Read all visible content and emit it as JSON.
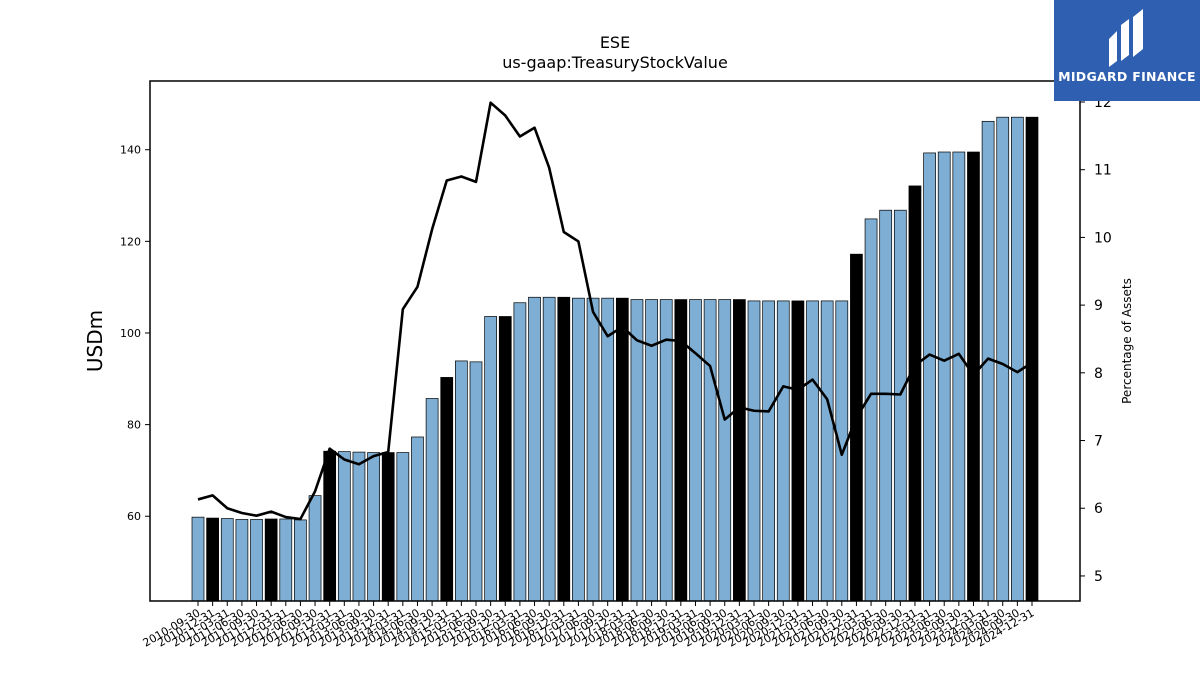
{
  "chart_data": {
    "type": "bar",
    "title": "ESE",
    "subtitle": "us-gaap:TreasuryStockValue",
    "ylabel": "USDm",
    "y2label": "Percentage of Assets",
    "ylim": [
      41.5,
      155
    ],
    "y2lim": [
      4.63,
      12.31
    ],
    "yticks": [
      60,
      80,
      100,
      120,
      140
    ],
    "y2ticks": [
      5,
      6,
      7,
      8,
      9,
      10,
      11,
      12
    ],
    "categories": [
      "2010-09-30",
      "2010-12-31",
      "2011-03-31",
      "2011-06-30",
      "2011-09-30",
      "2011-12-31",
      "2012-03-31",
      "2012-06-30",
      "2012-09-30",
      "2012-12-31",
      "2013-03-31",
      "2013-06-30",
      "2013-09-30",
      "2013-12-31",
      "2014-03-31",
      "2014-06-30",
      "2014-09-30",
      "2014-12-31",
      "2015-03-31",
      "2015-06-30",
      "2015-09-30",
      "2015-12-31",
      "2016-03-31",
      "2016-06-30",
      "2016-09-30",
      "2016-12-31",
      "2017-03-31",
      "2017-06-30",
      "2017-09-30",
      "2017-12-31",
      "2018-03-31",
      "2018-06-30",
      "2018-09-30",
      "2018-12-31",
      "2019-03-31",
      "2019-06-30",
      "2019-09-30",
      "2019-12-31",
      "2020-03-31",
      "2020-06-30",
      "2020-09-30",
      "2020-12-31",
      "2021-03-31",
      "2021-06-30",
      "2021-09-30",
      "2021-12-31",
      "2022-03-31",
      "2022-06-30",
      "2022-09-30",
      "2022-12-31",
      "2023-03-31",
      "2023-06-30",
      "2023-09-30",
      "2023-12-31",
      "2024-03-31",
      "2024-06-30",
      "2024-09-30",
      "2024-12-31"
    ],
    "highlight": [
      false,
      true,
      false,
      false,
      false,
      true,
      false,
      false,
      false,
      true,
      false,
      false,
      false,
      true,
      false,
      false,
      false,
      true,
      false,
      false,
      false,
      true,
      false,
      false,
      false,
      true,
      false,
      false,
      false,
      true,
      false,
      false,
      false,
      true,
      false,
      false,
      false,
      true,
      false,
      false,
      false,
      true,
      false,
      false,
      false,
      true,
      false,
      false,
      false,
      true,
      false,
      false,
      false,
      true,
      false,
      false,
      false,
      true
    ],
    "colors": {
      "bar": "#7eaed3",
      "highlight": "#000000",
      "line": "#000000"
    },
    "series": [
      {
        "axis": "left",
        "values": [
          59.8,
          59.6,
          59.5,
          59.3,
          59.3,
          59.4,
          59.4,
          59.2,
          64.5,
          74.2,
          74.1,
          74.0,
          73.9,
          73.9,
          73.9,
          77.3,
          85.7,
          90.3,
          93.9,
          93.7,
          103.6,
          103.6,
          106.6,
          107.8,
          107.8,
          107.8,
          107.6,
          107.6,
          107.6,
          107.6,
          107.3,
          107.3,
          107.3,
          107.3,
          107.3,
          107.3,
          107.3,
          107.3,
          107.0,
          107.0,
          107.0,
          107.0,
          107.0,
          107.0,
          107.0,
          117.2,
          124.9,
          126.8,
          126.8,
          132.1,
          139.3,
          139.5,
          139.5,
          139.5,
          146.2,
          147.1,
          147.1,
          147.1
        ]
      },
      {
        "axis": "right",
        "type": "line",
        "values": [
          6.13,
          6.19,
          6.0,
          5.93,
          5.89,
          5.95,
          5.87,
          5.84,
          6.25,
          6.88,
          6.72,
          6.65,
          6.77,
          6.83,
          8.94,
          9.27,
          10.12,
          10.84,
          10.9,
          10.82,
          11.99,
          11.8,
          11.49,
          11.62,
          11.03,
          10.08,
          9.94,
          8.9,
          8.54,
          8.68,
          8.48,
          8.4,
          8.49,
          8.47,
          8.29,
          8.1,
          7.31,
          7.49,
          7.44,
          7.43,
          7.8,
          7.75,
          7.9,
          7.61,
          6.79,
          7.34,
          7.69,
          7.69,
          7.68,
          8.11,
          8.27,
          8.18,
          8.28,
          7.97,
          8.21,
          8.13,
          8.01,
          8.15
        ]
      }
    ]
  },
  "logo": {
    "text": "MIDGARD FINANCE"
  }
}
